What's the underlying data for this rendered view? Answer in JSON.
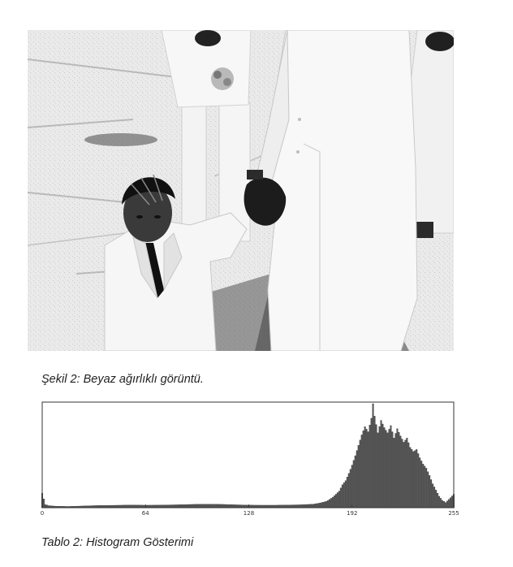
{
  "figure": {
    "caption": "Şekil 2: Beyaz ağırlıklı görüntü.",
    "image_alt": "Beyaz takım elbiseli çocuk ve yetişkin el ele"
  },
  "table": {
    "caption": "Tablo 2: Histogram Gösterimi"
  },
  "chart_data": {
    "type": "bar",
    "title": "",
    "xlabel": "",
    "ylabel": "",
    "xlim": [
      0,
      255
    ],
    "ylim": [
      0,
      1
    ],
    "x_ticks": [
      0,
      64,
      128,
      192,
      255
    ],
    "x_tick_labels": [
      "0",
      "64",
      "128",
      "192",
      "255"
    ],
    "grid": false,
    "bar_color": "#555555",
    "bins": [
      {
        "x": 0,
        "y": 0.14
      },
      {
        "x": 2,
        "y": 0.03
      },
      {
        "x": 4,
        "y": 0.02
      },
      {
        "x": 8,
        "y": 0.015
      },
      {
        "x": 16,
        "y": 0.012
      },
      {
        "x": 24,
        "y": 0.016
      },
      {
        "x": 32,
        "y": 0.02
      },
      {
        "x": 40,
        "y": 0.022
      },
      {
        "x": 48,
        "y": 0.024
      },
      {
        "x": 56,
        "y": 0.026
      },
      {
        "x": 64,
        "y": 0.024
      },
      {
        "x": 72,
        "y": 0.025
      },
      {
        "x": 80,
        "y": 0.027
      },
      {
        "x": 88,
        "y": 0.03
      },
      {
        "x": 96,
        "y": 0.033
      },
      {
        "x": 104,
        "y": 0.034
      },
      {
        "x": 112,
        "y": 0.032
      },
      {
        "x": 120,
        "y": 0.028
      },
      {
        "x": 128,
        "y": 0.025
      },
      {
        "x": 136,
        "y": 0.024
      },
      {
        "x": 144,
        "y": 0.024
      },
      {
        "x": 152,
        "y": 0.026
      },
      {
        "x": 160,
        "y": 0.028
      },
      {
        "x": 168,
        "y": 0.034
      },
      {
        "x": 172,
        "y": 0.045
      },
      {
        "x": 176,
        "y": 0.06
      },
      {
        "x": 180,
        "y": 0.1
      },
      {
        "x": 184,
        "y": 0.16
      },
      {
        "x": 186,
        "y": 0.22
      },
      {
        "x": 188,
        "y": 0.26
      },
      {
        "x": 190,
        "y": 0.33
      },
      {
        "x": 192,
        "y": 0.41
      },
      {
        "x": 194,
        "y": 0.5
      },
      {
        "x": 196,
        "y": 0.6
      },
      {
        "x": 198,
        "y": 0.7
      },
      {
        "x": 200,
        "y": 0.78
      },
      {
        "x": 202,
        "y": 0.73
      },
      {
        "x": 204,
        "y": 0.86
      },
      {
        "x": 205,
        "y": 1.0
      },
      {
        "x": 206,
        "y": 0.88
      },
      {
        "x": 208,
        "y": 0.72
      },
      {
        "x": 210,
        "y": 0.84
      },
      {
        "x": 212,
        "y": 0.77
      },
      {
        "x": 214,
        "y": 0.72
      },
      {
        "x": 216,
        "y": 0.79
      },
      {
        "x": 218,
        "y": 0.67
      },
      {
        "x": 220,
        "y": 0.76
      },
      {
        "x": 222,
        "y": 0.69
      },
      {
        "x": 224,
        "y": 0.63
      },
      {
        "x": 226,
        "y": 0.67
      },
      {
        "x": 228,
        "y": 0.58
      },
      {
        "x": 230,
        "y": 0.54
      },
      {
        "x": 232,
        "y": 0.56
      },
      {
        "x": 234,
        "y": 0.48
      },
      {
        "x": 236,
        "y": 0.42
      },
      {
        "x": 238,
        "y": 0.38
      },
      {
        "x": 240,
        "y": 0.31
      },
      {
        "x": 242,
        "y": 0.23
      },
      {
        "x": 244,
        "y": 0.17
      },
      {
        "x": 246,
        "y": 0.11
      },
      {
        "x": 248,
        "y": 0.07
      },
      {
        "x": 250,
        "y": 0.05
      },
      {
        "x": 252,
        "y": 0.08
      },
      {
        "x": 255,
        "y": 0.13
      }
    ]
  }
}
